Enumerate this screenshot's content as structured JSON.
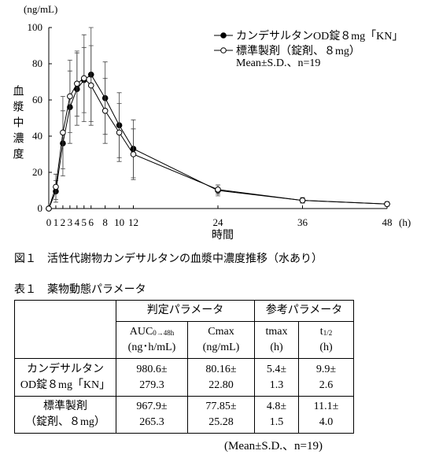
{
  "chart_data": {
    "type": "line",
    "y_unit": "(ng/mL)",
    "y_label": "血漿中濃度",
    "x_label": "時間",
    "x_unit": "(h)",
    "x": [
      0,
      1,
      2,
      3,
      4,
      5,
      6,
      8,
      10,
      12,
      24,
      36,
      48
    ],
    "series": [
      {
        "name": "カンデサルタンOD錠８mg「KN」",
        "color": "#000000",
        "marker_fill": "#000000",
        "values": [
          0,
          9.5,
          36,
          56,
          66,
          71,
          74,
          61,
          46,
          33,
          10,
          4.5,
          2.5
        ],
        "errors": [
          0,
          6,
          18,
          20,
          20,
          18,
          26,
          20,
          18,
          16,
          3,
          1.5,
          1.2
        ]
      },
      {
        "name": "標準製剤（錠剤、８mg）",
        "color": "#000000",
        "marker_fill": "#ffffff",
        "values": [
          0,
          12,
          42,
          62,
          69,
          72,
          68,
          54,
          42,
          30,
          10.5,
          4.5,
          2.5
        ],
        "errors": [
          0,
          7,
          20,
          20,
          18,
          24,
          22,
          18,
          16,
          14,
          2.5,
          1.5,
          1
        ]
      }
    ],
    "legend_note": "Mean±S.D.、n=19",
    "xlim": [
      0,
      48
    ],
    "xticks": [
      0,
      1,
      2,
      3,
      4,
      5,
      6,
      8,
      10,
      12,
      24,
      36,
      48
    ],
    "ylim": [
      0,
      100
    ],
    "yticks": [
      0,
      20,
      40,
      60,
      80,
      100
    ]
  },
  "figure_caption": "図１　活性代謝物カンデサルタンの血漿中濃度推移（水あり）",
  "table": {
    "title": "表１　薬物動態パラメータ",
    "groups": [
      "判定パラメータ",
      "参考パラメータ"
    ],
    "columns": [
      {
        "main": "AUC",
        "sub": "0→48h",
        "unit": "(ng･h/mL)"
      },
      {
        "main": "Cmax",
        "unit": "(ng/mL)"
      },
      {
        "main": "tmax",
        "unit": "(h)"
      },
      {
        "main": "t",
        "sub": "1/2",
        "unit": "(h)"
      }
    ],
    "rows": [
      {
        "label": [
          "カンデサルタン",
          "OD錠８mg「KN」"
        ],
        "cells": [
          [
            "980.6±",
            "279.3"
          ],
          [
            "80.16±",
            "22.80"
          ],
          [
            "5.4±",
            "1.3"
          ],
          [
            "9.9±",
            "2.6"
          ]
        ]
      },
      {
        "label": [
          "標準製剤",
          "（錠剤、８mg）"
        ],
        "cells": [
          [
            "967.9±",
            "265.3"
          ],
          [
            "77.85±",
            "25.28"
          ],
          [
            "4.8±",
            "1.5"
          ],
          [
            "11.1±",
            "4.0"
          ]
        ]
      }
    ],
    "note": "(Mean±S.D.、n=19)"
  }
}
